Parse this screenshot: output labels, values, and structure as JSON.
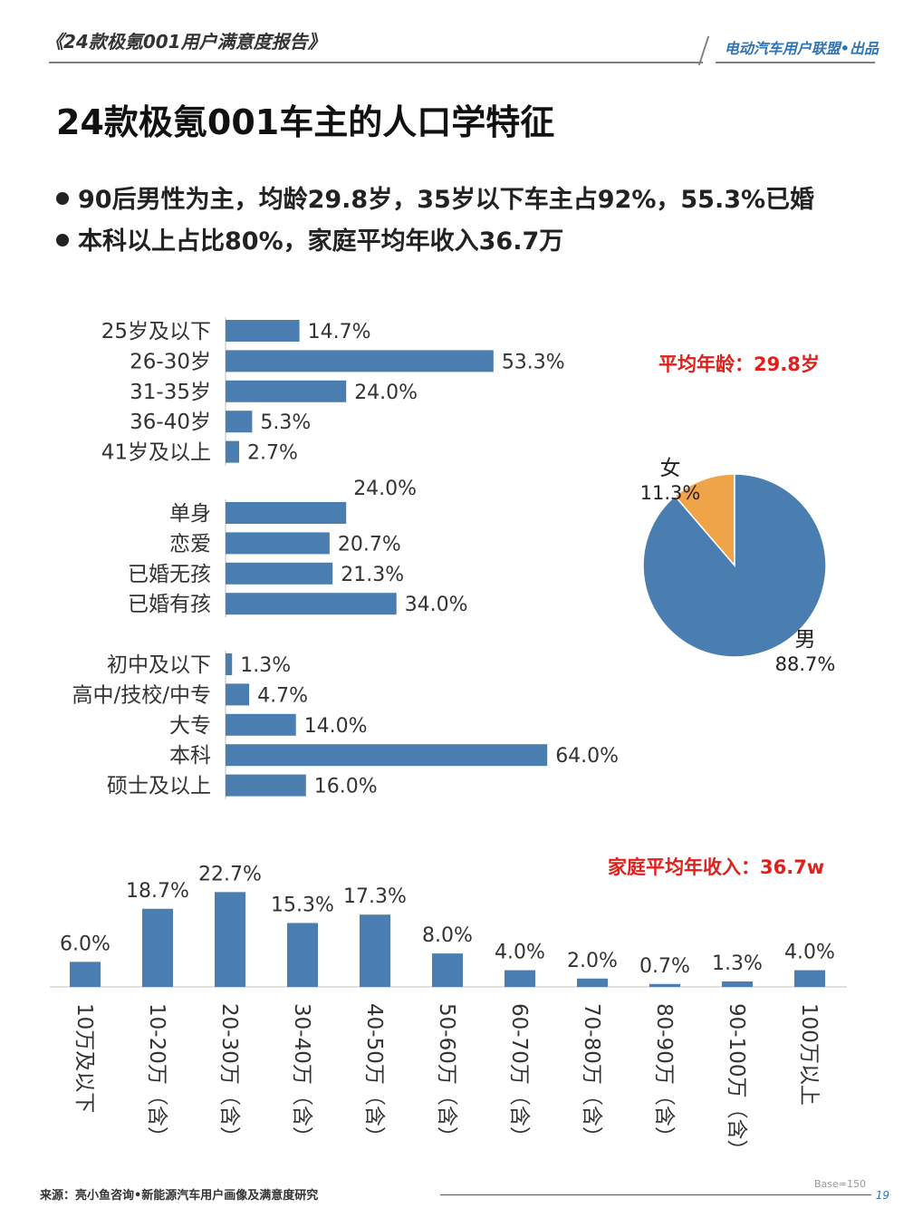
{
  "header": {
    "report_title": "《24款极氪001用户满意度报告》",
    "brand": "电动汽车用户联盟•出品"
  },
  "page_title": "24款极氪001车主的人口学特征",
  "bullets": [
    "90后男性为主，均龄29.8岁，35岁以下车主占92%，55.3%已婚",
    "本科以上占比80%，家庭平均年收入36.7万"
  ],
  "callouts": {
    "avg_age": "平均年龄：29.8岁",
    "avg_income": "家庭平均年收入：36.7w"
  },
  "colors": {
    "bar": "#4a7eb0",
    "pie_female": "#f0a44a",
    "pie_male": "#4a7eb0",
    "callout": "#e0201b",
    "brand": "#2f74b5"
  },
  "chart_data": [
    {
      "type": "bar",
      "orientation": "horizontal",
      "categories": [
        "25岁及以下",
        "26-30岁",
        "31-35岁",
        "36-40岁",
        "41岁及以上"
      ],
      "values": [
        14.7,
        53.3,
        24.0,
        5.3,
        2.7
      ],
      "labels": [
        "14.7%",
        "53.3%",
        "24.0%",
        "5.3%",
        "2.7%"
      ]
    },
    {
      "type": "bar",
      "orientation": "horizontal",
      "categories": [
        "单身",
        "恋爱",
        "已婚无孩",
        "已婚有孩"
      ],
      "values": [
        24.0,
        20.7,
        21.3,
        34.0
      ],
      "labels": [
        "24.0%",
        "20.7%",
        "21.3%",
        "34.0%"
      ]
    },
    {
      "type": "bar",
      "orientation": "horizontal",
      "categories": [
        "初中及以下",
        "高中/技校/中专",
        "大专",
        "本科",
        "硕士及以上"
      ],
      "values": [
        1.3,
        4.7,
        14.0,
        64.0,
        16.0
      ],
      "labels": [
        "1.3%",
        "4.7%",
        "14.0%",
        "64.0%",
        "16.0%"
      ]
    },
    {
      "type": "pie",
      "categories": [
        "女",
        "男"
      ],
      "values": [
        11.3,
        88.7
      ],
      "labels": [
        "11.3%",
        "88.7%"
      ]
    },
    {
      "type": "bar",
      "orientation": "vertical",
      "categories": [
        "10万及以下",
        "10-20万（含）",
        "20-30万（含）",
        "30-40万（含）",
        "40-50万（含）",
        "50-60万（含）",
        "60-70万（含）",
        "70-80万（含）",
        "80-90万（含）",
        "90-100万（含）",
        "100万以上"
      ],
      "values": [
        6.0,
        18.7,
        22.7,
        15.3,
        17.3,
        8.0,
        4.0,
        2.0,
        0.7,
        1.3,
        4.0
      ],
      "labels": [
        "6.0%",
        "18.7%",
        "22.7%",
        "15.3%",
        "17.3%",
        "8.0%",
        "4.0%",
        "2.0%",
        "0.7%",
        "1.3%",
        "4.0%"
      ]
    }
  ],
  "footer": {
    "source": "来源：亮小鱼咨询•新能源汽车用户画像及满意度研究",
    "base": "Base=150",
    "page": "19"
  }
}
